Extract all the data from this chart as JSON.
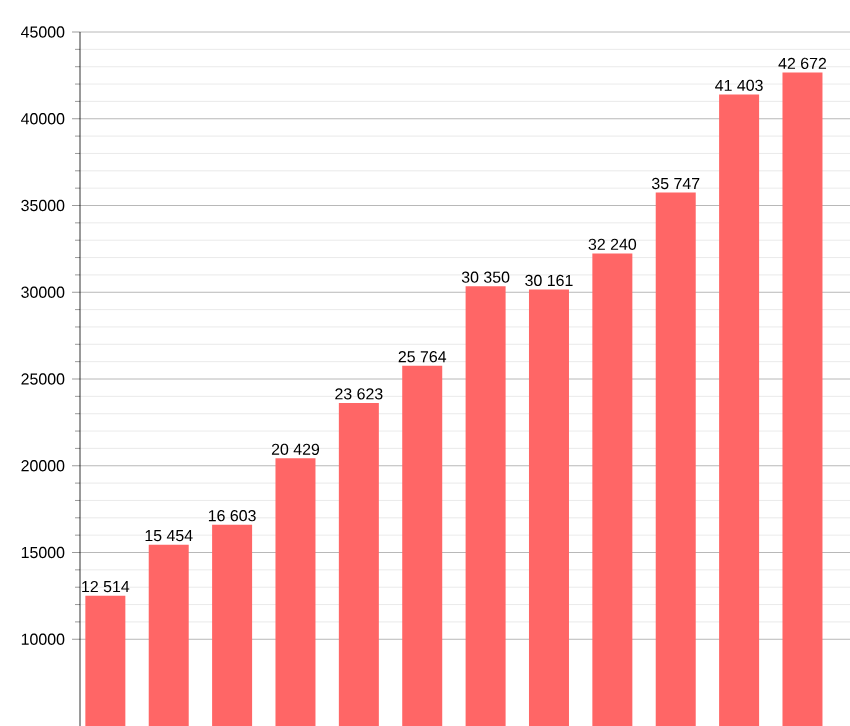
{
  "chart_data": {
    "type": "bar",
    "categories": [
      null,
      null,
      null,
      null,
      null,
      null,
      null,
      null,
      null,
      null,
      null,
      null
    ],
    "values": [
      12514,
      15454,
      16603,
      20429,
      23623,
      25764,
      30350,
      30161,
      32240,
      35747,
      41403,
      42672
    ],
    "value_labels": [
      "12 514",
      "15 454",
      "16 603",
      "20 429",
      "23 623",
      "25 764",
      "30 350",
      "30 161",
      "32 240",
      "35 747",
      "41 403",
      "42 672"
    ],
    "color": "#ff6666",
    "ylim": [
      5000,
      45000
    ],
    "yticks": [
      10000,
      15000,
      20000,
      25000,
      30000,
      35000,
      40000,
      45000
    ],
    "grid": true,
    "tick_labels": "y"
  }
}
